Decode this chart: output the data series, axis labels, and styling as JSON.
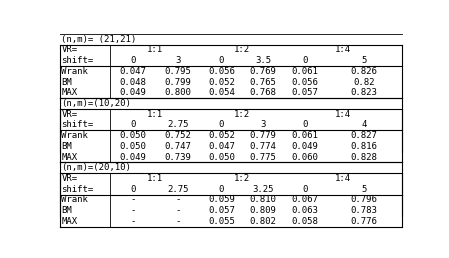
{
  "title": "(n,m)= (21,21)",
  "sections": [
    {
      "label": null,
      "vr_labels": [
        "1:1",
        "1:2",
        "1:4"
      ],
      "shift_row": [
        "shift=",
        "0",
        "3",
        "0",
        "3.5",
        "0",
        "5"
      ],
      "rows": [
        [
          "Wrank",
          "0.047",
          "0.795",
          "0.056",
          "0.769",
          "0.061",
          "0.826"
        ],
        [
          "BM",
          "0.048",
          "0.799",
          "0.052",
          "0.765",
          "0.056",
          "0.82"
        ],
        [
          "MAX",
          "0.049",
          "0.800",
          "0.054",
          "0.768",
          "0.057",
          "0.823"
        ]
      ]
    },
    {
      "label": "(n,m)=(10,20)",
      "vr_labels": [
        "1:1",
        "1:2",
        "1:4"
      ],
      "shift_row": [
        "shift=",
        "0",
        "2.75",
        "0",
        "3",
        "0",
        "4"
      ],
      "rows": [
        [
          "Wrank",
          "0.050",
          "0.752",
          "0.052",
          "0.779",
          "0.061",
          "0.827"
        ],
        [
          "BM",
          "0.050",
          "0.747",
          "0.047",
          "0.774",
          "0.049",
          "0.816"
        ],
        [
          "MAX",
          "0.049",
          "0.739",
          "0.050",
          "0.775",
          "0.060",
          "0.828"
        ]
      ]
    },
    {
      "label": "(n,m)=(20,10)",
      "vr_labels": [
        "1:1",
        "1:2",
        "1:4"
      ],
      "shift_row": [
        "shift=",
        "0",
        "2.75",
        "0",
        "3.25",
        "0",
        "5"
      ],
      "rows": [
        [
          "Wrank",
          "-",
          "-",
          "0.059",
          "0.810",
          "0.067",
          "0.796"
        ],
        [
          "BM",
          "-",
          "-",
          "0.057",
          "0.809",
          "0.063",
          "0.783"
        ],
        [
          "MAX",
          "-",
          "-",
          "0.055",
          "0.802",
          "0.058",
          "0.776"
        ]
      ]
    }
  ],
  "bg_color": "#ffffff",
  "font_size": 6.5
}
